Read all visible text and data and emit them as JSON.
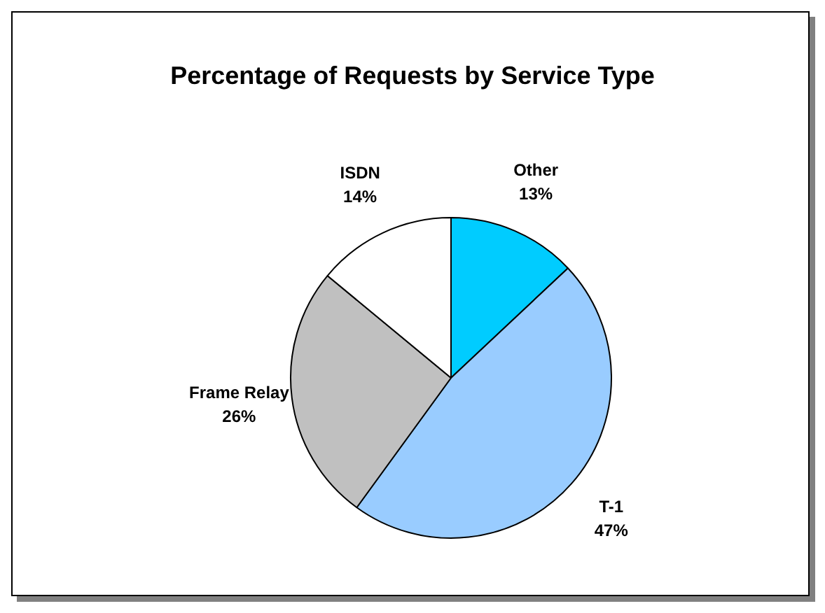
{
  "chart_data": {
    "type": "pie",
    "title": "Percentage of Requests by Service Type",
    "categories": [
      "Other",
      "T-1",
      "Frame Relay",
      "ISDN"
    ],
    "values": [
      13,
      47,
      26,
      14
    ],
    "colors": [
      "#00ccff",
      "#99ccff",
      "#c0c0c0",
      "#ffffff"
    ],
    "value_labels": [
      "13%",
      "47%",
      "26%",
      "14%"
    ],
    "legend": false
  }
}
